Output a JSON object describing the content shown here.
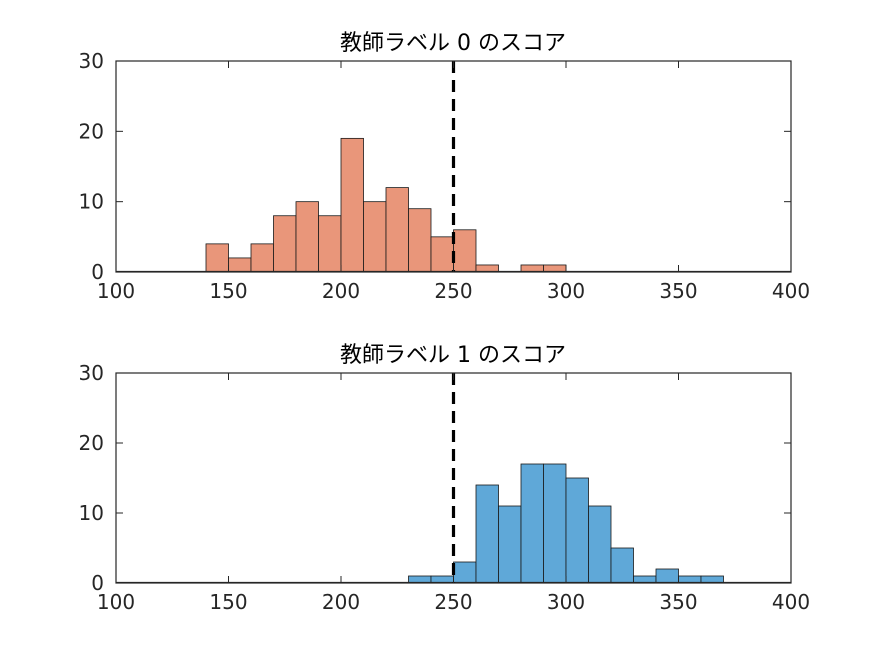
{
  "chart_data": [
    {
      "type": "bar",
      "title": "教師ラベル 0 のスコア",
      "xlabel": "",
      "ylabel": "",
      "xlim": [
        100,
        400
      ],
      "ylim": [
        0,
        30
      ],
      "xticks": [
        "100",
        "150",
        "200",
        "250",
        "300",
        "350",
        "400"
      ],
      "yticks": [
        "0",
        "10",
        "20",
        "30"
      ],
      "bin_width": 10,
      "bin_starts": [
        140,
        150,
        160,
        170,
        180,
        190,
        200,
        210,
        220,
        230,
        240,
        250,
        260,
        270,
        280,
        290
      ],
      "values": [
        4,
        2,
        4,
        8,
        10,
        8,
        19,
        10,
        12,
        9,
        5,
        6,
        1,
        0,
        1,
        1
      ],
      "threshold": 250,
      "bar_color": "#E9967A",
      "grid": false
    },
    {
      "type": "bar",
      "title": "教師ラベル 1 のスコア",
      "xlabel": "",
      "ylabel": "",
      "xlim": [
        100,
        400
      ],
      "ylim": [
        0,
        30
      ],
      "xticks": [
        "100",
        "150",
        "200",
        "250",
        "300",
        "350",
        "400"
      ],
      "yticks": [
        "0",
        "10",
        "20",
        "30"
      ],
      "bin_width": 10,
      "bin_starts": [
        230,
        240,
        250,
        260,
        270,
        280,
        290,
        300,
        310,
        320,
        330,
        340,
        350,
        360
      ],
      "values": [
        1,
        1,
        3,
        14,
        11,
        17,
        17,
        15,
        11,
        5,
        1,
        2,
        1,
        1
      ],
      "threshold": 250,
      "bar_color": "#5FA8D8",
      "grid": false
    }
  ]
}
